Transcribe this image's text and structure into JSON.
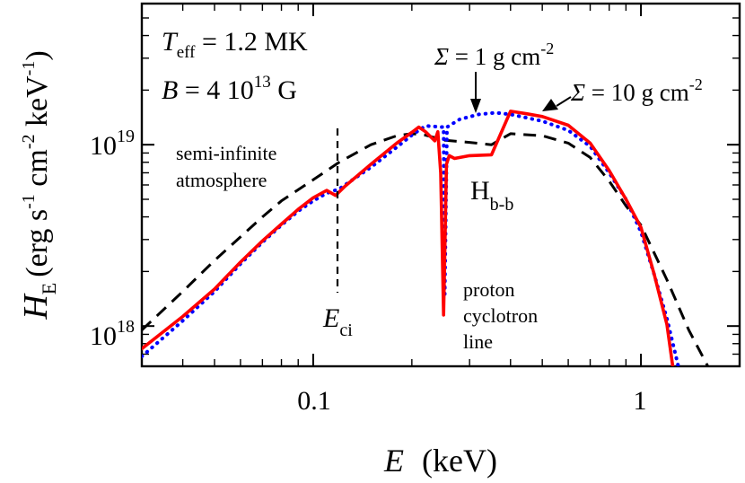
{
  "chart_data": {
    "type": "line",
    "xlabel": {
      "symbol": "E",
      "unit": "(keV)"
    },
    "ylabel": {
      "symbol": "H",
      "subscript": "E",
      "unit": "(erg s",
      "unit_sup1": "-1",
      "unit_mid": " cm",
      "unit_sup2": "-2",
      "unit_end": " keV",
      "unit_sup3": "-1",
      "unit_close": ")"
    },
    "x_scale": "log",
    "y_scale": "log",
    "xlim": [
      0.03,
      2.0
    ],
    "ylim": [
      6e+17,
      6e+19
    ],
    "x_ticks": [
      {
        "value": 0.1,
        "label": "0.1"
      },
      {
        "value": 1,
        "label": "1"
      }
    ],
    "y_ticks": [
      {
        "value": 1e+18,
        "base": "10",
        "exp": "18"
      },
      {
        "value": 1e+19,
        "base": "10",
        "exp": "19"
      }
    ],
    "params": {
      "teff": {
        "sym": "T",
        "sub": "eff",
        "rest": " = 1.2 MK"
      },
      "b": {
        "sym": "B",
        "rest": " = 4 10",
        "sup": "13",
        "unit": " G"
      }
    },
    "annotations": {
      "semi_line1": "semi-infinite",
      "semi_line2": "atmosphere",
      "eci_sym": "E",
      "eci_sub": "ci",
      "hbb_sym": "H",
      "hbb_sub": "b-b",
      "proton_1": "proton",
      "proton_2": "cyclotron",
      "proton_3": "line",
      "sigma1_sym": "Σ",
      "sigma1_rest": " = 1 g cm",
      "sigma1_sup": "-2",
      "sigma10_sym": "Σ",
      "sigma10_rest": " = 10 g cm",
      "sigma10_sup": "-2"
    },
    "series": [
      {
        "color": "#000000",
        "style": "dashed",
        "points": [
          [
            0.03,
            9.5e+17
          ],
          [
            0.04,
            1.55e+18
          ],
          [
            0.05,
            2.3e+18
          ],
          [
            0.06,
            3.1e+18
          ],
          [
            0.07,
            4e+18
          ],
          [
            0.08,
            4.9e+18
          ],
          [
            0.1,
            6.4e+18
          ],
          [
            0.12,
            8e+18
          ],
          [
            0.15,
            1e+19
          ],
          [
            0.18,
            1.12e+19
          ],
          [
            0.2,
            1.15e+19
          ],
          [
            0.22,
            1.13e+19
          ],
          [
            0.25,
            1.06e+19
          ],
          [
            0.3,
            1.03e+19
          ],
          [
            0.35,
            1e+19
          ],
          [
            0.4,
            1.15e+19
          ],
          [
            0.5,
            1.12e+19
          ],
          [
            0.6,
            1.02e+19
          ],
          [
            0.7,
            8.5e+18
          ],
          [
            0.8,
            6.3e+18
          ],
          [
            0.9,
            4.6e+18
          ],
          [
            1.0,
            3.6e+18
          ],
          [
            1.2,
            1.8e+18
          ],
          [
            1.4,
            9.5e+17
          ],
          [
            1.6,
            6e+17
          ]
        ]
      },
      {
        "color": "#0000ff",
        "style": "dotted",
        "points": [
          [
            0.03,
            6.8e+17
          ],
          [
            0.04,
            1.07e+18
          ],
          [
            0.05,
            1.55e+18
          ],
          [
            0.06,
            2.2e+18
          ],
          [
            0.07,
            2.9e+18
          ],
          [
            0.08,
            3.6e+18
          ],
          [
            0.09,
            4.3e+18
          ],
          [
            0.1,
            4.9e+18
          ],
          [
            0.11,
            5.4e+18
          ],
          [
            0.12,
            5.7e+18
          ],
          [
            0.15,
            7.5e+18
          ],
          [
            0.18,
            9.7e+18
          ],
          [
            0.2,
            1.13e+19
          ],
          [
            0.22,
            1.27e+19
          ],
          [
            0.25,
            1.25e+19
          ],
          [
            0.252,
            1.5e+18
          ],
          [
            0.256,
            1.25e+19
          ],
          [
            0.28,
            1.38e+19
          ],
          [
            0.32,
            1.47e+19
          ],
          [
            0.36,
            1.5e+19
          ],
          [
            0.4,
            1.47e+19
          ],
          [
            0.5,
            1.35e+19
          ],
          [
            0.6,
            1.2e+19
          ],
          [
            0.7,
            9.8e+18
          ],
          [
            0.8,
            7e+18
          ],
          [
            0.9,
            5e+18
          ],
          [
            1.0,
            3.3e+18
          ],
          [
            1.1,
            1.9e+18
          ],
          [
            1.2,
            1.1e+18
          ],
          [
            1.3,
            6e+17
          ]
        ]
      },
      {
        "color": "#ff0000",
        "style": "solid",
        "points": [
          [
            0.03,
            7.5e+17
          ],
          [
            0.04,
            1.13e+18
          ],
          [
            0.05,
            1.6e+18
          ],
          [
            0.06,
            2.25e+18
          ],
          [
            0.07,
            2.95e+18
          ],
          [
            0.08,
            3.65e+18
          ],
          [
            0.09,
            4.4e+18
          ],
          [
            0.1,
            5.1e+18
          ],
          [
            0.11,
            5.6e+18
          ],
          [
            0.117,
            5.25e+18
          ],
          [
            0.125,
            5.9e+18
          ],
          [
            0.15,
            7.8e+18
          ],
          [
            0.18,
            1.02e+19
          ],
          [
            0.2,
            1.17e+19
          ],
          [
            0.21,
            1.25e+19
          ],
          [
            0.22,
            1.18e+19
          ],
          [
            0.235,
            1.05e+19
          ],
          [
            0.24,
            1.18e+19
          ],
          [
            0.245,
            7e+18
          ],
          [
            0.25,
            1.15e+18
          ],
          [
            0.255,
            7.8e+18
          ],
          [
            0.26,
            8.7e+18
          ],
          [
            0.27,
            8.4e+18
          ],
          [
            0.3,
            8.7e+18
          ],
          [
            0.35,
            8.8e+18
          ],
          [
            0.4,
            1.53e+19
          ],
          [
            0.45,
            1.48e+19
          ],
          [
            0.5,
            1.43e+19
          ],
          [
            0.6,
            1.28e+19
          ],
          [
            0.7,
            1.02e+19
          ],
          [
            0.8,
            7.2e+18
          ],
          [
            0.9,
            5e+18
          ],
          [
            1.0,
            3.5e+18
          ],
          [
            1.1,
            1.9e+18
          ],
          [
            1.2,
            1.02e+18
          ],
          [
            1.25,
            6e+17
          ]
        ]
      }
    ]
  }
}
